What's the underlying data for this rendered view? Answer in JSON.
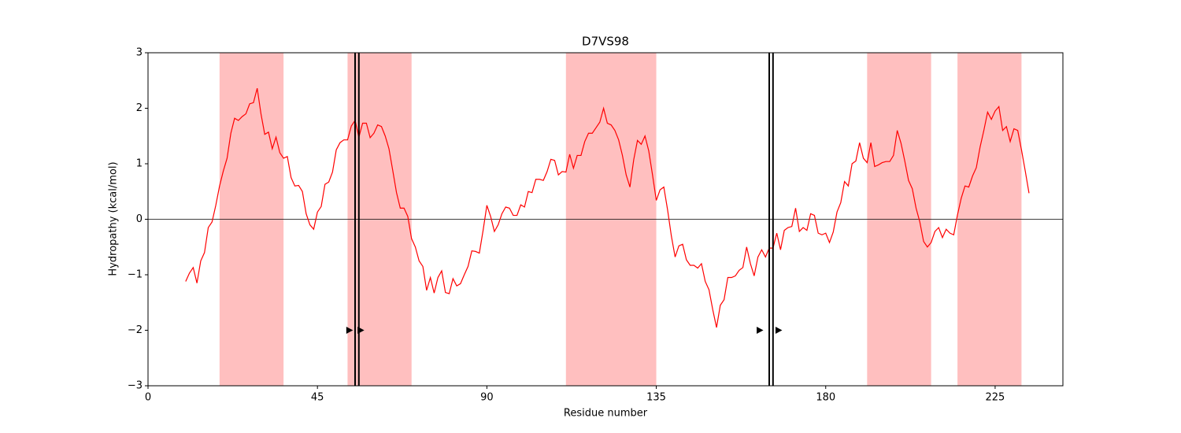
{
  "chart_data": {
    "type": "line",
    "title": "D7VS98",
    "x_label": "Residue number",
    "y_label": "Hydropathy (kcal/mol)",
    "xlim": [
      0,
      243
    ],
    "ylim": [
      -3,
      3
    ],
    "xticks": [
      0,
      45,
      90,
      135,
      180,
      225
    ],
    "yticks": [
      {
        "value": -3,
        "label": "−3"
      },
      {
        "value": -2,
        "label": "−2"
      },
      {
        "value": -1,
        "label": "−1"
      },
      0,
      1,
      2,
      3
    ],
    "axhline": 0,
    "shaded_regions": [
      {
        "start": 19,
        "end": 36
      },
      {
        "start": 53,
        "end": 70
      },
      {
        "start": 111,
        "end": 135
      },
      {
        "start": 191,
        "end": 208
      },
      {
        "start": 215,
        "end": 232
      }
    ],
    "shade_color": "#ffbfbf",
    "vlines": [
      55,
      56,
      165,
      166
    ],
    "markers": [
      {
        "x": 53.5,
        "y": -2
      },
      {
        "x": 56.5,
        "y": -2
      },
      {
        "x": 162.5,
        "y": -2
      },
      {
        "x": 167.5,
        "y": -2
      }
    ],
    "x": [
      10,
      11,
      12,
      13,
      14,
      15,
      16,
      17,
      18,
      19,
      20,
      21,
      22,
      23,
      24,
      25,
      26,
      27,
      28,
      29,
      30,
      31,
      32,
      33,
      34,
      35,
      36,
      37,
      38,
      39,
      40,
      41,
      42,
      43,
      44,
      45,
      46,
      47,
      48,
      49,
      50,
      51,
      52,
      53,
      54,
      55,
      56,
      57,
      58,
      59,
      60,
      61,
      62,
      63,
      64,
      65,
      66,
      67,
      68,
      69,
      70,
      71,
      72,
      73,
      74,
      75,
      76,
      77,
      78,
      79,
      80,
      81,
      82,
      83,
      84,
      85,
      86,
      87,
      88,
      89,
      90,
      91,
      92,
      93,
      94,
      95,
      96,
      97,
      98,
      99,
      100,
      101,
      102,
      103,
      104,
      105,
      106,
      107,
      108,
      109,
      110,
      111,
      112,
      113,
      114,
      115,
      116,
      117,
      118,
      119,
      120,
      121,
      122,
      123,
      124,
      125,
      126,
      127,
      128,
      129,
      130,
      131,
      132,
      133,
      134,
      135,
      136,
      137,
      138,
      139,
      140,
      141,
      142,
      143,
      144,
      145,
      146,
      147,
      148,
      149,
      150,
      151,
      152,
      153,
      154,
      155,
      156,
      157,
      158,
      159,
      160,
      161,
      162,
      163,
      164,
      165,
      166,
      167,
      168,
      169,
      170,
      171,
      172,
      173,
      174,
      175,
      176,
      177,
      178,
      179,
      180,
      181,
      182,
      183,
      184,
      185,
      186,
      187,
      188,
      189,
      190,
      191,
      192,
      193,
      194,
      195,
      196,
      197,
      198,
      199,
      200,
      201,
      202,
      203,
      204,
      205,
      206,
      207,
      208,
      209,
      210,
      211,
      212,
      213,
      214,
      215,
      216,
      217,
      218,
      219,
      220,
      221,
      222,
      223,
      224,
      225,
      226,
      227,
      228,
      229,
      230,
      231,
      232,
      233,
      234
    ],
    "series": [
      {
        "color": "#ff0000",
        "values": [
          -1.12,
          -0.97,
          -0.87,
          -1.15,
          -0.75,
          -0.6,
          -0.15,
          -0.05,
          0.25,
          0.6,
          0.87,
          1.1,
          1.55,
          1.82,
          1.78,
          1.85,
          1.9,
          2.08,
          2.1,
          2.36,
          1.9,
          1.53,
          1.57,
          1.27,
          1.48,
          1.2,
          1.1,
          1.13,
          0.75,
          0.6,
          0.61,
          0.5,
          0.1,
          -0.1,
          -0.18,
          0.13,
          0.23,
          0.63,
          0.67,
          0.85,
          1.25,
          1.38,
          1.43,
          1.43,
          1.68,
          1.78,
          1.48,
          1.73,
          1.73,
          1.47,
          1.55,
          1.7,
          1.67,
          1.5,
          1.27,
          0.88,
          0.48,
          0.2,
          0.2,
          0.05,
          -0.35,
          -0.5,
          -0.75,
          -0.85,
          -1.28,
          -1.05,
          -1.33,
          -1.05,
          -0.93,
          -1.32,
          -1.34,
          -1.07,
          -1.2,
          -1.16,
          -1.0,
          -0.85,
          -0.57,
          -0.58,
          -0.61,
          -0.2,
          0.25,
          0.05,
          -0.22,
          -0.1,
          0.1,
          0.22,
          0.2,
          0.07,
          0.07,
          0.26,
          0.22,
          0.5,
          0.48,
          0.72,
          0.72,
          0.7,
          0.86,
          1.08,
          1.06,
          0.8,
          0.86,
          0.85,
          1.17,
          0.92,
          1.15,
          1.15,
          1.4,
          1.55,
          1.55,
          1.65,
          1.75,
          2.0,
          1.73,
          1.7,
          1.6,
          1.43,
          1.15,
          0.8,
          0.58,
          1.07,
          1.42,
          1.35,
          1.5,
          1.23,
          0.8,
          0.34,
          0.53,
          0.58,
          0.17,
          -0.3,
          -0.68,
          -0.48,
          -0.45,
          -0.73,
          -0.83,
          -0.83,
          -0.88,
          -0.8,
          -1.12,
          -1.27,
          -1.63,
          -1.95,
          -1.55,
          -1.45,
          -1.05,
          -1.05,
          -1.02,
          -0.92,
          -0.87,
          -0.5,
          -0.8,
          -1.02,
          -0.68,
          -0.55,
          -0.68,
          -0.52,
          -0.52,
          -0.25,
          -0.55,
          -0.2,
          -0.15,
          -0.13,
          0.2,
          -0.22,
          -0.15,
          -0.2,
          0.1,
          0.07,
          -0.25,
          -0.28,
          -0.25,
          -0.42,
          -0.23,
          0.13,
          0.3,
          0.68,
          0.6,
          1.0,
          1.05,
          1.38,
          1.1,
          1.02,
          1.38,
          0.95,
          0.98,
          1.02,
          1.04,
          1.04,
          1.15,
          1.6,
          1.37,
          1.05,
          0.7,
          0.55,
          0.2,
          -0.05,
          -0.4,
          -0.5,
          -0.42,
          -0.22,
          -0.15,
          -0.33,
          -0.18,
          -0.25,
          -0.28,
          0.08,
          0.38,
          0.6,
          0.58,
          0.78,
          0.93,
          1.3,
          1.6,
          1.93,
          1.8,
          1.95,
          2.03,
          1.6,
          1.67,
          1.4,
          1.63,
          1.6,
          1.25,
          0.87,
          0.47
        ]
      }
    ]
  }
}
